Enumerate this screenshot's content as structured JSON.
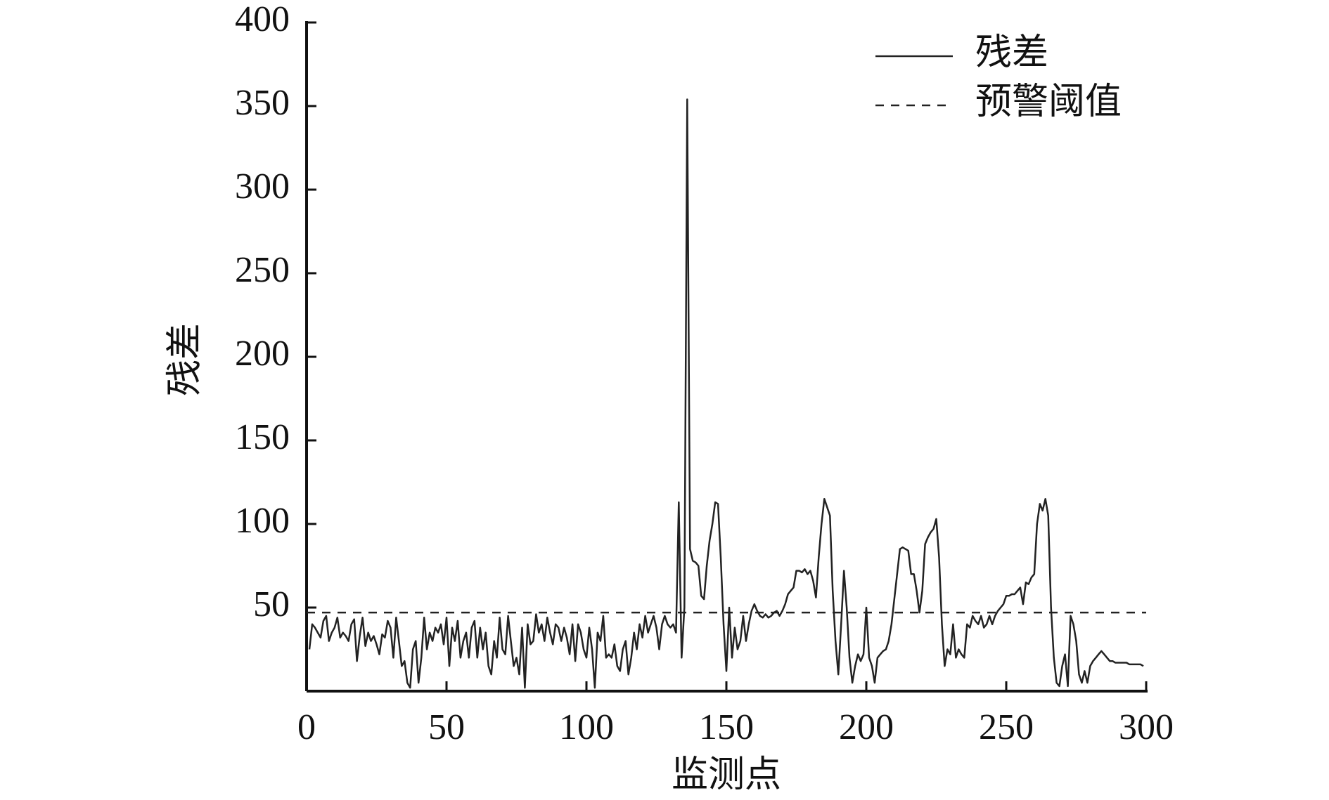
{
  "chart_data": {
    "type": "line",
    "ylabel": "残差",
    "xlabel": "监测点",
    "x": [
      1,
      2,
      3,
      4,
      5,
      6,
      7,
      8,
      9,
      10,
      11,
      12,
      13,
      14,
      15,
      16,
      17,
      18,
      19,
      20,
      21,
      22,
      23,
      24,
      25,
      26,
      27,
      28,
      29,
      30,
      31,
      32,
      33,
      34,
      35,
      36,
      37,
      38,
      39,
      40,
      41,
      42,
      43,
      44,
      45,
      46,
      47,
      48,
      49,
      50,
      51,
      52,
      53,
      54,
      55,
      56,
      57,
      58,
      59,
      60,
      61,
      62,
      63,
      64,
      65,
      66,
      67,
      68,
      69,
      70,
      71,
      72,
      73,
      74,
      75,
      76,
      77,
      78,
      79,
      80,
      81,
      82,
      83,
      84,
      85,
      86,
      87,
      88,
      89,
      90,
      91,
      92,
      93,
      94,
      95,
      96,
      97,
      98,
      99,
      100,
      101,
      102,
      103,
      104,
      105,
      106,
      107,
      108,
      109,
      110,
      111,
      112,
      113,
      114,
      115,
      116,
      117,
      118,
      119,
      120,
      121,
      122,
      123,
      124,
      125,
      126,
      127,
      128,
      129,
      130,
      131,
      132,
      133,
      134,
      135,
      136,
      137,
      138,
      139,
      140,
      141,
      142,
      143,
      144,
      145,
      146,
      147,
      148,
      149,
      150,
      151,
      152,
      153,
      154,
      155,
      156,
      157,
      158,
      159,
      160,
      161,
      162,
      163,
      164,
      165,
      166,
      167,
      168,
      169,
      170,
      171,
      172,
      173,
      174,
      175,
      176,
      177,
      178,
      179,
      180,
      181,
      182,
      183,
      184,
      185,
      186,
      187,
      188,
      189,
      190,
      191,
      192,
      193,
      194,
      195,
      196,
      197,
      198,
      199,
      200,
      201,
      202,
      203,
      204,
      205,
      206,
      207,
      208,
      209,
      210,
      211,
      212,
      213,
      214,
      215,
      216,
      217,
      218,
      219,
      220,
      221,
      222,
      223,
      224,
      225,
      226,
      227,
      228,
      229,
      230,
      231,
      232,
      233,
      234,
      235,
      236,
      237,
      238,
      239,
      240,
      241,
      242,
      243,
      244,
      245,
      246,
      247,
      248,
      249,
      250,
      251,
      252,
      253,
      254,
      255,
      256,
      257,
      258,
      259,
      260,
      261,
      262,
      263,
      264,
      265,
      266,
      267,
      268,
      269,
      270,
      271,
      272,
      273,
      274,
      275,
      276,
      277,
      278,
      279,
      280,
      281,
      282,
      283,
      284,
      285,
      286,
      287,
      288,
      289,
      290,
      291,
      292,
      293,
      294,
      295,
      296,
      297,
      298,
      299
    ],
    "series": [
      {
        "name": "残差",
        "color": "#222222",
        "values": [
          25,
          40,
          38,
          35,
          32,
          42,
          45,
          30,
          35,
          38,
          44,
          32,
          35,
          33,
          30,
          40,
          43,
          18,
          33,
          44,
          27,
          35,
          30,
          33,
          28,
          22,
          34,
          32,
          42,
          38,
          20,
          44,
          30,
          15,
          18,
          5,
          2,
          25,
          30,
          5,
          20,
          44,
          25,
          35,
          30,
          38,
          35,
          40,
          28,
          44,
          15,
          38,
          30,
          42,
          20,
          30,
          35,
          20,
          38,
          42,
          20,
          38,
          25,
          35,
          15,
          10,
          30,
          20,
          44,
          25,
          22,
          45,
          30,
          15,
          20,
          10,
          38,
          2,
          40,
          28,
          30,
          46,
          35,
          40,
          30,
          44,
          35,
          28,
          40,
          38,
          30,
          38,
          32,
          22,
          40,
          18,
          40,
          35,
          25,
          20,
          38,
          25,
          2,
          35,
          30,
          45,
          20,
          22,
          20,
          28,
          15,
          12,
          25,
          30,
          10,
          20,
          35,
          25,
          40,
          32,
          45,
          35,
          40,
          45,
          38,
          25,
          40,
          45,
          40,
          38,
          40,
          35,
          113,
          20,
          50,
          354,
          85,
          78,
          77,
          75,
          57,
          55,
          75,
          90,
          100,
          113,
          112,
          80,
          40,
          12,
          50,
          20,
          38,
          25,
          30,
          45,
          30,
          40,
          48,
          52,
          48,
          45,
          44,
          46,
          44,
          45,
          47,
          48,
          45,
          48,
          52,
          58,
          60,
          62,
          72,
          72,
          71,
          73,
          70,
          72,
          66,
          56,
          80,
          100,
          115,
          110,
          105,
          60,
          30,
          10,
          40,
          72,
          50,
          20,
          5,
          15,
          22,
          18,
          22,
          50,
          20,
          15,
          5,
          20,
          22,
          24,
          25,
          30,
          40,
          55,
          70,
          85,
          86,
          85,
          84,
          70,
          70,
          60,
          47,
          60,
          88,
          92,
          95,
          97,
          103,
          80,
          40,
          15,
          25,
          22,
          40,
          20,
          25,
          22,
          20,
          40,
          38,
          45,
          42,
          40,
          45,
          38,
          40,
          45,
          40,
          45,
          48,
          50,
          52,
          57,
          57,
          58,
          58,
          60,
          62,
          52,
          65,
          64,
          68,
          70,
          100,
          112,
          108,
          115,
          105,
          50,
          20,
          5,
          3,
          15,
          22,
          3,
          45,
          40,
          30,
          10,
          5,
          12,
          5,
          15,
          18,
          20,
          22,
          24,
          22,
          20,
          18,
          18,
          17,
          17,
          17,
          17,
          17,
          16,
          16,
          16,
          16,
          16,
          15
        ]
      }
    ],
    "threshold": {
      "name": "预警阈值",
      "value": 47,
      "color": "#222222"
    },
    "xlim": [
      0,
      300
    ],
    "xticks": [
      0,
      50,
      100,
      150,
      200,
      250,
      300
    ],
    "ylim": [
      0,
      400
    ],
    "yticks": [
      50,
      100,
      150,
      200,
      250,
      300,
      350,
      400
    ],
    "legend": "upper right"
  }
}
